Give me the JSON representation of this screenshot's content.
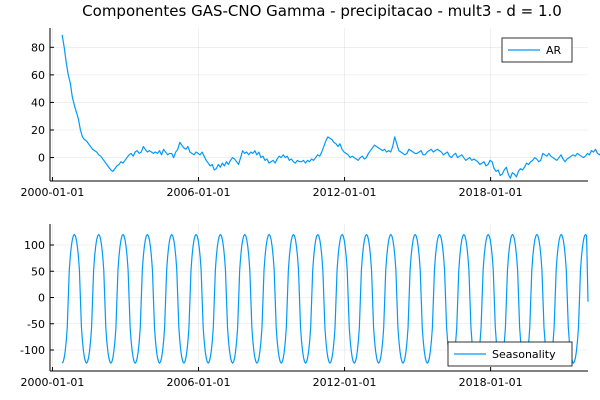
{
  "chart_data": {
    "type": "line",
    "title": "Componentes GAS-CNO Gamma - precipitacao - mult3 - d = 1.0",
    "x_tick_labels": [
      "2000-01-01",
      "2006-01-01",
      "2012-01-01",
      "2018-01-01"
    ],
    "x_tick_years": [
      2000,
      2006,
      2012,
      2018
    ],
    "x_range_years": [
      1999.9,
      2022.0
    ],
    "color": "#009AFA",
    "panels": [
      {
        "series_name": "AR",
        "legend_position": "top-right",
        "grid": true,
        "ylim": [
          -17,
          94
        ],
        "y_ticks": [
          0,
          20,
          40,
          60,
          80
        ],
        "x_start_year": 2000.4,
        "x_step_years": 0.0833,
        "values": [
          89,
          80,
          69,
          60,
          54,
          44,
          38,
          33,
          28,
          20,
          15,
          13,
          12,
          10,
          8,
          6,
          5,
          4,
          2,
          1,
          -1,
          -3,
          -5,
          -7,
          -9,
          -10,
          -8,
          -6,
          -5,
          -3,
          -4,
          -2,
          0,
          2,
          3,
          1,
          4,
          5,
          3,
          4,
          8,
          6,
          4,
          5,
          4,
          3,
          4,
          3,
          5,
          2,
          6,
          4,
          2,
          3,
          3,
          0,
          4,
          6,
          11,
          9,
          7,
          6,
          8,
          4,
          3,
          2,
          4,
          3,
          2,
          4,
          1,
          -2,
          -4,
          -6,
          -5,
          -9,
          -8,
          -5,
          -7,
          -4,
          -6,
          -3,
          -5,
          -2,
          0,
          -1,
          -3,
          -5,
          0,
          5,
          3,
          4,
          2,
          4,
          3,
          5,
          2,
          4,
          0,
          1,
          -2,
          -1,
          -4,
          -3,
          -2,
          -4,
          -1,
          1,
          0,
          2,
          0,
          1,
          -2,
          -1,
          -3,
          -4,
          -2,
          -3,
          -3,
          -2,
          -4,
          -2,
          -3,
          -1,
          -2,
          0,
          2,
          1,
          4,
          8,
          12,
          15,
          14,
          13,
          11,
          10,
          8,
          10,
          6,
          4,
          3,
          2,
          0,
          1,
          0,
          -1,
          -2,
          0,
          1,
          -1,
          0,
          3,
          5,
          7,
          9,
          8,
          7,
          6,
          5,
          6,
          4,
          5,
          4,
          8,
          15,
          10,
          5,
          4,
          3,
          2,
          3,
          6,
          5,
          4,
          3,
          3,
          4,
          5,
          2,
          2,
          4,
          5,
          6,
          4,
          5,
          6,
          5,
          4,
          2,
          3,
          4,
          1,
          0,
          2,
          3,
          0,
          1,
          2,
          0,
          -2,
          -1,
          0,
          -2,
          -1,
          -2,
          -3,
          -5,
          -4,
          -3,
          -6,
          -5,
          -2,
          -3,
          -8,
          -10,
          -9,
          -13,
          -12,
          -9,
          -7,
          -12,
          -15,
          -11,
          -12,
          -14,
          -10,
          -8,
          -9,
          -7,
          -4,
          -5,
          -3,
          -2,
          0,
          -1,
          -3,
          -2,
          3,
          2,
          1,
          3,
          1,
          0,
          -1,
          -2,
          0,
          2,
          -1,
          -3,
          -1,
          0,
          1,
          2,
          1,
          3,
          2,
          1,
          0,
          1,
          3,
          2,
          5,
          4,
          6,
          3,
          2,
          4,
          1,
          2,
          3,
          0,
          -1,
          2,
          0,
          -2,
          -3,
          -1,
          0,
          1,
          3,
          2,
          0,
          -1,
          -3,
          -2,
          -4,
          0,
          -2,
          -1,
          -1,
          1,
          1,
          0
        ]
      },
      {
        "series_name": "Seasonality",
        "legend_position": "bottom-right",
        "grid": true,
        "ylim": [
          -140,
          140
        ],
        "y_ticks": [
          -100,
          -50,
          0,
          50,
          100
        ],
        "x_start_year": 2000.4,
        "period_years": 1.0,
        "amplitude_min": -125,
        "amplitude_max": 120,
        "last_value": -8,
        "end_year": 2022.0
      }
    ]
  }
}
